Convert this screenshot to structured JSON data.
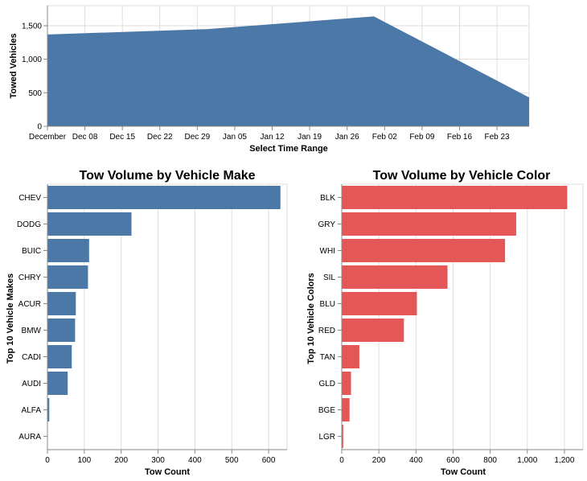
{
  "chart_data": [
    {
      "type": "area",
      "title": "",
      "xlabel": "Select Time Range",
      "ylabel": "Towed Vehicles",
      "x": [
        "2019-12-01",
        "2019-12-31",
        "2020-01-31",
        "2020-02-29"
      ],
      "values": [
        1370,
        1450,
        1640,
        430
      ],
      "x_ticks": [
        "December",
        "Dec 08",
        "Dec 15",
        "Dec 22",
        "Dec 29",
        "Jan 05",
        "Jan 12",
        "Jan 19",
        "Jan 26",
        "Feb 02",
        "Feb 09",
        "Feb 16",
        "Feb 23"
      ],
      "y_ticks": [
        "0",
        "500",
        "1,000",
        "1,500"
      ],
      "ylim": [
        0,
        1800
      ],
      "grid": true,
      "color": "#4c78a8"
    },
    {
      "type": "bar",
      "orientation": "horizontal",
      "title": "Tow Volume by Vehicle Make",
      "xlabel": "Tow Count",
      "ylabel": "Top 10 Vehicle Makes",
      "categories": [
        "CHEV",
        "DODG",
        "BUIC",
        "CHRY",
        "ACUR",
        "BMW",
        "CADI",
        "AUDI",
        "ALFA",
        "AURA"
      ],
      "values": [
        632,
        228,
        113,
        110,
        77,
        75,
        66,
        55,
        5,
        1
      ],
      "x_ticks": [
        "0",
        "100",
        "200",
        "300",
        "400",
        "500",
        "600"
      ],
      "xlim": [
        0,
        650
      ],
      "grid": true,
      "color": "#4c78a8"
    },
    {
      "type": "bar",
      "orientation": "horizontal",
      "title": "Tow Volume by Vehicle Color",
      "xlabel": "Tow Count",
      "ylabel": "Top 10 Vehicle Colors",
      "categories": [
        "BLK",
        "GRY",
        "WHI",
        "SIL",
        "BLU",
        "RED",
        "TAN",
        "GLD",
        "BGE",
        "LGR"
      ],
      "values": [
        1215,
        940,
        880,
        570,
        405,
        335,
        95,
        50,
        42,
        8
      ],
      "x_ticks": [
        "0",
        "200",
        "400",
        "600",
        "800",
        "1,000",
        "1,200"
      ],
      "xlim": [
        0,
        1300
      ],
      "grid": true,
      "color": "#e45756"
    }
  ]
}
